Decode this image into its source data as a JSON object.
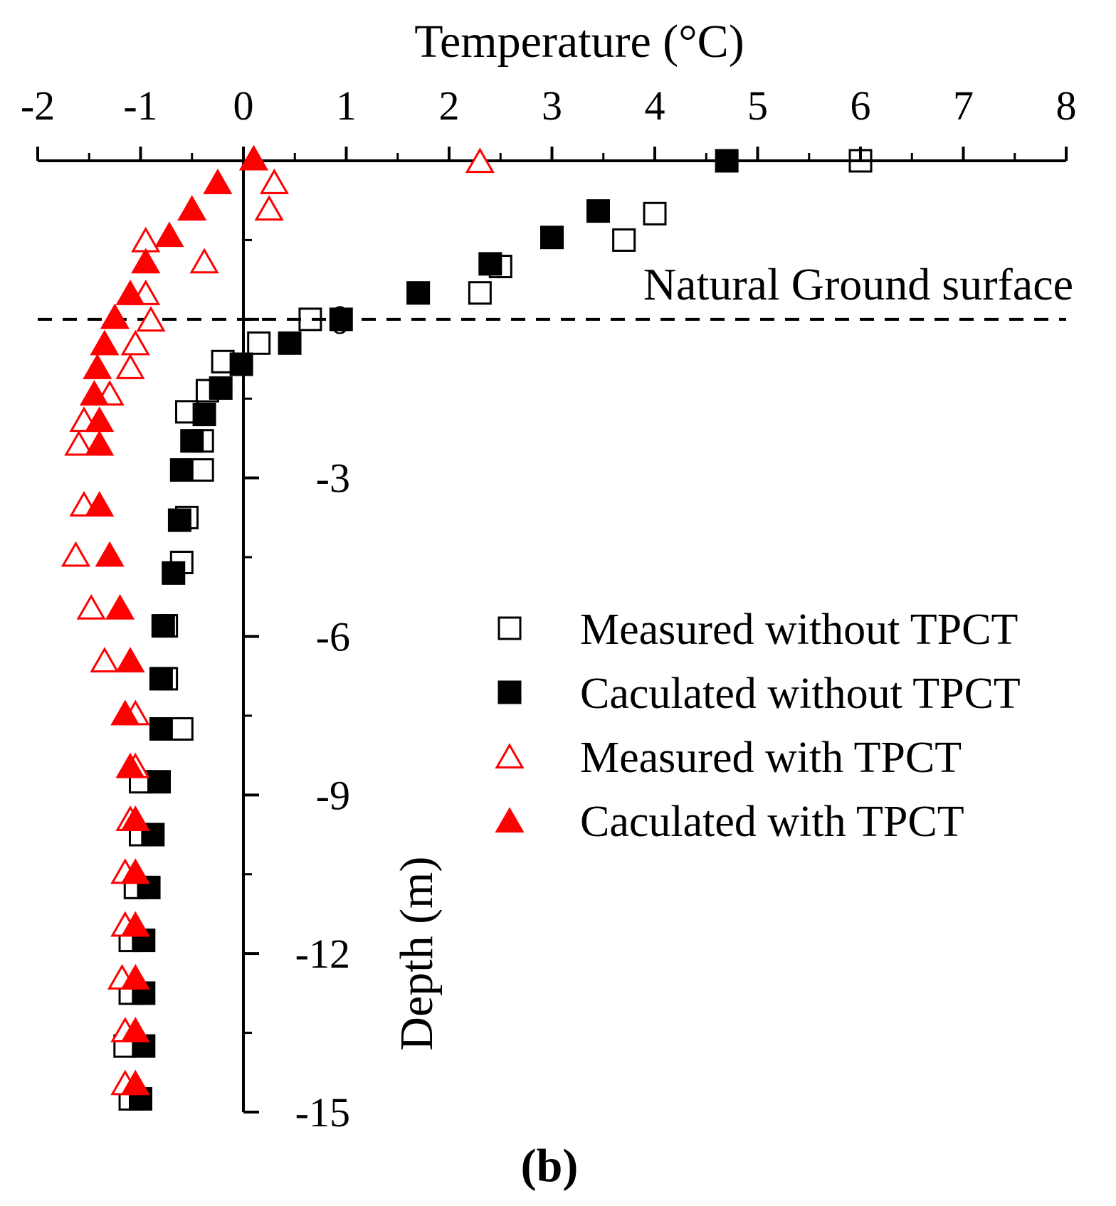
{
  "chart_data": {
    "type": "scatter",
    "panel_label": "(b)",
    "x_axis": {
      "title": "Temperature (°C)",
      "range": [
        -2,
        8
      ],
      "ticks": [
        -2,
        -1,
        0,
        1,
        2,
        3,
        4,
        5,
        6,
        7,
        8
      ],
      "tick_labels": [
        "-2",
        "-1",
        "0",
        "1",
        "2",
        "3",
        "4",
        "5",
        "6",
        "7",
        "8"
      ],
      "position": "top"
    },
    "y_axis": {
      "title": "Depth (m)",
      "range": [
        -15,
        3
      ],
      "ticks": [
        0,
        -3,
        -6,
        -9,
        -12,
        -15
      ],
      "tick_labels": [
        "0",
        "-3",
        "-6",
        "-9",
        "-12",
        "-15"
      ],
      "position": "at x = 0"
    },
    "annotations": [
      {
        "text": "Natural Ground surface",
        "depth": 0,
        "line": "dashed horizontal at depth 0"
      }
    ],
    "legend_placement": "right-center",
    "series": [
      {
        "name": "Measured without TPCT",
        "marker": "open-square",
        "color": "#000000",
        "points": [
          [
            6.0,
            3.0
          ],
          [
            4.0,
            2.0
          ],
          [
            3.7,
            1.5
          ],
          [
            2.5,
            1.0
          ],
          [
            2.3,
            0.5
          ],
          [
            0.65,
            0.0
          ],
          [
            0.15,
            -0.45
          ],
          [
            -0.2,
            -0.8
          ],
          [
            -0.35,
            -1.35
          ],
          [
            -0.55,
            -1.75
          ],
          [
            -0.4,
            -2.3
          ],
          [
            -0.4,
            -2.85
          ],
          [
            -0.55,
            -3.75
          ],
          [
            -0.6,
            -4.6
          ],
          [
            -0.75,
            -5.8
          ],
          [
            -0.75,
            -6.8
          ],
          [
            -0.6,
            -7.75
          ],
          [
            -1.0,
            -8.75
          ],
          [
            -1.0,
            -9.75
          ],
          [
            -1.05,
            -10.75
          ],
          [
            -1.1,
            -11.75
          ],
          [
            -1.1,
            -12.75
          ],
          [
            -1.15,
            -13.75
          ],
          [
            -1.1,
            -14.75
          ]
        ]
      },
      {
        "name": "Caculated without TPCT",
        "marker": "filled-square",
        "color": "#000000",
        "points": [
          [
            4.7,
            3.0
          ],
          [
            3.45,
            2.05
          ],
          [
            3.0,
            1.55
          ],
          [
            2.4,
            1.05
          ],
          [
            1.7,
            0.5
          ],
          [
            0.95,
            0.0
          ],
          [
            0.45,
            -0.45
          ],
          [
            -0.02,
            -0.85
          ],
          [
            -0.22,
            -1.3
          ],
          [
            -0.38,
            -1.8
          ],
          [
            -0.5,
            -2.3
          ],
          [
            -0.6,
            -2.85
          ],
          [
            -0.62,
            -3.8
          ],
          [
            -0.68,
            -4.8
          ],
          [
            -0.78,
            -5.8
          ],
          [
            -0.8,
            -6.8
          ],
          [
            -0.8,
            -7.75
          ],
          [
            -0.82,
            -8.75
          ],
          [
            -0.88,
            -9.75
          ],
          [
            -0.92,
            -10.75
          ],
          [
            -0.97,
            -11.75
          ],
          [
            -0.97,
            -12.75
          ],
          [
            -0.97,
            -13.75
          ],
          [
            -1.0,
            -14.75
          ]
        ]
      },
      {
        "name": "Measured with TPCT",
        "marker": "open-triangle",
        "color": "#ff0000",
        "points": [
          [
            2.3,
            3.0
          ],
          [
            0.3,
            2.6
          ],
          [
            0.25,
            2.1
          ],
          [
            -0.95,
            1.5
          ],
          [
            -0.38,
            1.1
          ],
          [
            -0.95,
            0.5
          ],
          [
            -0.9,
            0.0
          ],
          [
            -1.05,
            -0.45
          ],
          [
            -1.1,
            -0.9
          ],
          [
            -1.3,
            -1.4
          ],
          [
            -1.55,
            -1.9
          ],
          [
            -1.6,
            -2.35
          ],
          [
            -1.55,
            -3.5
          ],
          [
            -1.63,
            -4.45
          ],
          [
            -1.48,
            -5.45
          ],
          [
            -1.35,
            -6.45
          ],
          [
            -1.05,
            -7.45
          ],
          [
            -1.05,
            -8.45
          ],
          [
            -1.1,
            -9.45
          ],
          [
            -1.15,
            -10.45
          ],
          [
            -1.15,
            -11.45
          ],
          [
            -1.18,
            -12.45
          ],
          [
            -1.15,
            -13.45
          ],
          [
            -1.15,
            -14.45
          ]
        ]
      },
      {
        "name": "Caculated with TPCT",
        "marker": "filled-triangle",
        "color": "#ff0000",
        "points": [
          [
            0.1,
            3.05
          ],
          [
            -0.25,
            2.6
          ],
          [
            -0.5,
            2.1
          ],
          [
            -0.72,
            1.6
          ],
          [
            -0.95,
            1.1
          ],
          [
            -1.1,
            0.5
          ],
          [
            -1.25,
            0.05
          ],
          [
            -1.35,
            -0.45
          ],
          [
            -1.42,
            -0.9
          ],
          [
            -1.45,
            -1.4
          ],
          [
            -1.4,
            -1.9
          ],
          [
            -1.4,
            -2.35
          ],
          [
            -1.4,
            -3.5
          ],
          [
            -1.3,
            -4.45
          ],
          [
            -1.2,
            -5.45
          ],
          [
            -1.1,
            -6.45
          ],
          [
            -1.15,
            -7.45
          ],
          [
            -1.1,
            -8.45
          ],
          [
            -1.05,
            -9.45
          ],
          [
            -1.05,
            -10.45
          ],
          [
            -1.05,
            -11.45
          ],
          [
            -1.05,
            -12.45
          ],
          [
            -1.05,
            -13.45
          ],
          [
            -1.05,
            -14.45
          ]
        ]
      }
    ]
  }
}
